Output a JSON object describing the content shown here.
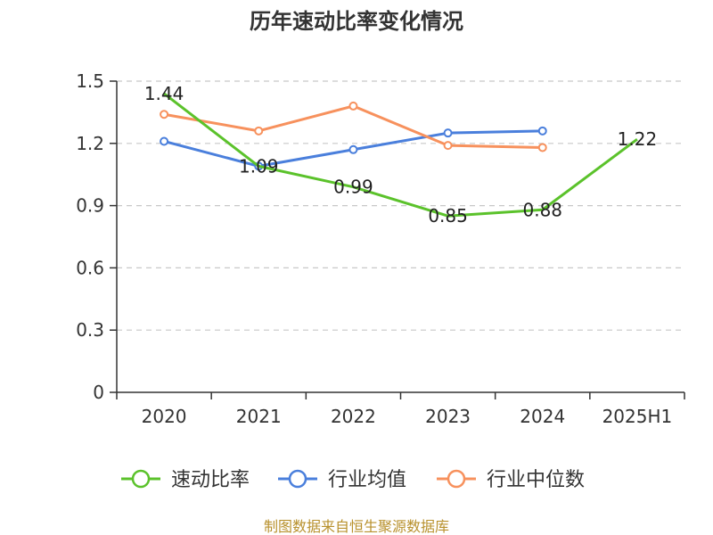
{
  "chart_data": {
    "type": "line",
    "title": "历年速动比率变化情况",
    "categories": [
      "2020",
      "2021",
      "2022",
      "2023",
      "2024",
      "2025H1"
    ],
    "ylim": [
      0,
      1.5
    ],
    "yticks": [
      "0",
      "0.3",
      "0.6",
      "0.9",
      "1.2",
      "1.5"
    ],
    "grid": true,
    "legend_position": "bottom",
    "series": [
      {
        "name": "速动比率",
        "color": "#5bc22b",
        "values": [
          1.44,
          1.09,
          0.99,
          0.85,
          0.88,
          1.22
        ],
        "labels": [
          "1.44",
          "1.09",
          "0.99",
          "0.85",
          "0.88",
          "1.22"
        ],
        "markers": false
      },
      {
        "name": "行业均值",
        "color": "#4a7fdc",
        "values": [
          1.21,
          1.09,
          1.17,
          1.25,
          1.26,
          null
        ],
        "markers": true
      },
      {
        "name": "行业中位数",
        "color": "#f7915d",
        "values": [
          1.34,
          1.26,
          1.38,
          1.19,
          1.18,
          null
        ],
        "markers": true
      }
    ],
    "source": "制图数据来自恒生聚源数据库"
  }
}
